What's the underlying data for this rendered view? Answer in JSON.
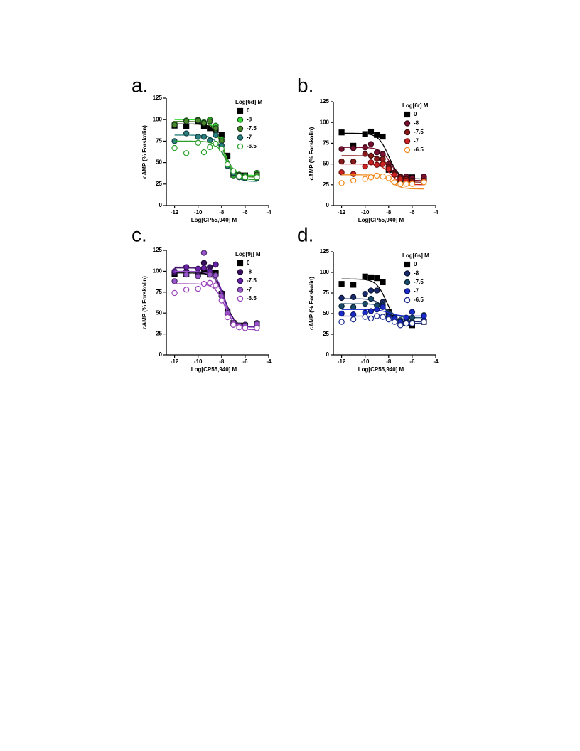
{
  "chart_data": [
    {
      "type": "scatter",
      "letter": "a.",
      "legend_title": "Log[6d] M",
      "x_label": "Log[CP55,940] M",
      "y_label": "cAMP (% Forskolin)",
      "x": [
        -12,
        -11,
        -10,
        -9.5,
        -9,
        -8.5,
        -8,
        -7.5,
        -7,
        -6.5,
        -6,
        -5
      ],
      "xlim": [
        -12.7,
        -4
      ],
      "xticks": [
        -12,
        -10,
        -8,
        -6,
        -4
      ],
      "ylim": [
        0,
        125
      ],
      "yticks": [
        0,
        25,
        50,
        75,
        100,
        125
      ],
      "series": [
        {
          "name": "0",
          "marker": "square",
          "color": "#000000",
          "fill": "#000000",
          "values": [
            93,
            92,
            98,
            92,
            90,
            88,
            82,
            58,
            36,
            35,
            35,
            36
          ],
          "fit": {
            "top": 95,
            "bottom": 34,
            "log_ec50": -7.8
          }
        },
        {
          "name": "-8",
          "marker": "circle",
          "color": "#1a5a1a",
          "fill": "#33dd33",
          "values": [
            95,
            99,
            100,
            97,
            100,
            93,
            77,
            48,
            35,
            36,
            35,
            38
          ],
          "fit": {
            "top": 100,
            "bottom": 35,
            "log_ec50": -7.9
          }
        },
        {
          "name": "-7.5",
          "marker": "circle",
          "color": "#1a3a1a",
          "fill": "#4a8a2a",
          "values": [
            94,
            98,
            99,
            96,
            98,
            90,
            75,
            48,
            37,
            35,
            34,
            36
          ],
          "fit": {
            "top": 98,
            "bottom": 33,
            "log_ec50": -7.9
          }
        },
        {
          "name": "-7",
          "marker": "circle",
          "color": "#124040",
          "fill": "#2a8080",
          "values": [
            75,
            84,
            80,
            80,
            76,
            82,
            70,
            46,
            38,
            33,
            32,
            32
          ],
          "fit": {
            "top": 82,
            "bottom": 28,
            "log_ec50": -7.7
          }
        },
        {
          "name": "-6.5",
          "marker": "circle",
          "color": "#2aa02a",
          "fill": "#ffffff",
          "values": [
            67,
            61,
            73,
            62,
            68,
            72,
            66,
            48,
            40,
            34,
            33,
            33
          ],
          "fit": {
            "top": 75,
            "bottom": 30,
            "log_ec50": -7.6
          }
        }
      ]
    },
    {
      "type": "scatter",
      "letter": "b.",
      "legend_title": "Log[6r] M",
      "x_label": "Log[CP55,940] M",
      "y_label": "cAMP (% Forskolin)",
      "x": [
        -12,
        -11,
        -10,
        -9.5,
        -9,
        -8.5,
        -8,
        -7.5,
        -7,
        -6.5,
        -6,
        -5
      ],
      "xlim": [
        -12.7,
        -4
      ],
      "xticks": [
        -12,
        -10,
        -8,
        -6,
        -4
      ],
      "ylim": [
        0,
        125
      ],
      "yticks": [
        0,
        25,
        50,
        75,
        100,
        125
      ],
      "series": [
        {
          "name": "0",
          "marker": "square",
          "color": "#000000",
          "fill": "#000000",
          "values": [
            88,
            72,
            86,
            89,
            85,
            83,
            43,
            38,
            30,
            33,
            34,
            32
          ],
          "fit": {
            "top": 87,
            "bottom": 32,
            "log_ec50": -8.0
          }
        },
        {
          "name": "-8",
          "marker": "circle",
          "color": "#3a0818",
          "fill": "#7a1030",
          "values": [
            68,
            69,
            70,
            74,
            64,
            62,
            50,
            40,
            35,
            35,
            33,
            35
          ],
          "fit": {
            "top": 70,
            "bottom": 30,
            "log_ec50": -7.8
          }
        },
        {
          "name": "-7.5",
          "marker": "circle",
          "color": "#400a0a",
          "fill": "#8b1a1a",
          "values": [
            53,
            53,
            62,
            60,
            56,
            56,
            46,
            38,
            34,
            32,
            30,
            30
          ],
          "fit": {
            "top": 60,
            "bottom": 28,
            "log_ec50": -7.8
          }
        },
        {
          "name": "-7",
          "marker": "circle",
          "color": "#661010",
          "fill": "#cc2222",
          "values": [
            40,
            38,
            47,
            52,
            49,
            50,
            44,
            37,
            32,
            30,
            28,
            30
          ],
          "fit": {
            "top": 50,
            "bottom": 25,
            "log_ec50": -7.8
          }
        },
        {
          "name": "-6.5",
          "marker": "circle",
          "color": "#f08a20",
          "fill": "#ffffff",
          "values": [
            27,
            30,
            32,
            34,
            36,
            35,
            33,
            28,
            26,
            26,
            26,
            28
          ],
          "fit": {
            "top": 37,
            "bottom": 20,
            "log_ec50": -7.8
          }
        }
      ]
    },
    {
      "type": "scatter",
      "letter": "c.",
      "legend_title": "Log[9j] M",
      "x_label": "Log[CP55,940] M",
      "y_label": "cAMP (% Forskolin)",
      "x": [
        -12,
        -11,
        -10,
        -9.5,
        -9,
        -8.5,
        -8,
        -7.5,
        -7,
        -6.5,
        -6,
        -5
      ],
      "xlim": [
        -12.7,
        -4
      ],
      "xticks": [
        -12,
        -10,
        -8,
        -6,
        -4
      ],
      "ylim": [
        0,
        125
      ],
      "yticks": [
        0,
        25,
        50,
        75,
        100,
        125
      ],
      "series": [
        {
          "name": "0",
          "marker": "square",
          "color": "#000000",
          "fill": "#000000",
          "values": [
            97,
            97,
            96,
            100,
            96,
            98,
            73,
            52,
            38,
            35,
            35,
            37
          ],
          "fit": {
            "top": 98,
            "bottom": 33,
            "log_ec50": -7.7
          }
        },
        {
          "name": "-8",
          "marker": "circle",
          "color": "#1a0830",
          "fill": "#3a1060",
          "values": [
            98,
            100,
            98,
            110,
            105,
            108,
            74,
            50,
            36,
            35,
            36,
            38
          ],
          "fit": {
            "top": 104,
            "bottom": 33,
            "log_ec50": -7.8
          }
        },
        {
          "name": "-7.5",
          "marker": "circle",
          "color": "#351155",
          "fill": "#6a22aa",
          "values": [
            100,
            105,
            103,
            104,
            100,
            108,
            70,
            48,
            37,
            34,
            36,
            36
          ],
          "fit": {
            "top": 105,
            "bottom": 33,
            "log_ec50": -7.8
          }
        },
        {
          "name": "-7",
          "marker": "circle",
          "color": "#4a2a66",
          "fill": "#9955cc",
          "values": [
            88,
            96,
            94,
            122,
            96,
            95,
            70,
            50,
            38,
            35,
            35,
            37
          ],
          "fit": {
            "top": 100,
            "bottom": 30,
            "log_ec50": -7.8
          }
        },
        {
          "name": "-6.5",
          "marker": "circle",
          "color": "#9944bb",
          "fill": "#ffffff",
          "values": [
            74,
            78,
            79,
            85,
            86,
            83,
            65,
            45,
            36,
            33,
            32,
            32
          ],
          "fit": {
            "top": 85,
            "bottom": 30,
            "log_ec50": -7.7
          }
        }
      ]
    },
    {
      "type": "scatter",
      "letter": "d.",
      "legend_title": "Log[6s] M",
      "x_label": "Log[CP55,940] M",
      "y_label": "cAMP (% Forskolin)",
      "x": [
        -12,
        -11,
        -10,
        -9.5,
        -9,
        -8.5,
        -8,
        -7.5,
        -7,
        -6.5,
        -6,
        -5
      ],
      "xlim": [
        -12.7,
        -4
      ],
      "xticks": [
        -12,
        -10,
        -8,
        -6,
        -4
      ],
      "ylim": [
        0,
        125
      ],
      "yticks": [
        0,
        25,
        50,
        75,
        100,
        125
      ],
      "series": [
        {
          "name": "0",
          "marker": "square",
          "color": "#000000",
          "fill": "#000000",
          "values": [
            86,
            85,
            95,
            94,
            93,
            88,
            52,
            45,
            38,
            38,
            36,
            40
          ],
          "fit": {
            "top": 92,
            "bottom": 38,
            "log_ec50": -8.2
          }
        },
        {
          "name": "-8",
          "marker": "circle",
          "color": "#0a1535",
          "fill": "#1a2a6a",
          "values": [
            69,
            70,
            74,
            78,
            78,
            64,
            50,
            44,
            40,
            38,
            40,
            40
          ],
          "fit": {
            "top": 68,
            "bottom": 40,
            "log_ec50": -8.2
          }
        },
        {
          "name": "-7.5",
          "marker": "circle",
          "color": "#0a2535",
          "fill": "#1a4a6a",
          "values": [
            59,
            58,
            62,
            68,
            60,
            60,
            48,
            45,
            42,
            44,
            45,
            48
          ],
          "fit": {
            "top": 62,
            "bottom": 45,
            "log_ec50": -8.0
          }
        },
        {
          "name": "-7",
          "marker": "circle",
          "color": "#0a1566",
          "fill": "#1a2acc",
          "values": [
            50,
            49,
            51,
            53,
            55,
            58,
            46,
            44,
            40,
            45,
            52,
            47
          ],
          "fit": {
            "top": 55,
            "bottom": 47,
            "log_ec50": -8.0
          }
        },
        {
          "name": "-6.5",
          "marker": "circle",
          "color": "#1a2a8a",
          "fill": "#ffffff",
          "values": [
            40,
            43,
            46,
            44,
            47,
            46,
            43,
            40,
            36,
            38,
            38,
            40
          ],
          "fit": {
            "top": 47,
            "bottom": 38,
            "log_ec50": -7.8
          }
        }
      ]
    }
  ]
}
